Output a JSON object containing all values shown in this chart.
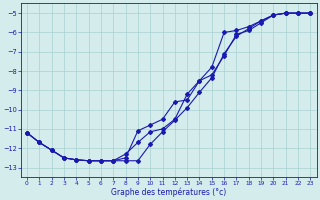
{
  "xlabel": "Graphe des températures (°c)",
  "bg_color": "#d4ecec",
  "grid_color": "#a8d0d0",
  "line_color": "#1a1ab0",
  "xlim_min": -0.5,
  "xlim_max": 23.5,
  "ylim_min": -13.5,
  "ylim_max": -4.5,
  "xticks": [
    0,
    1,
    2,
    3,
    4,
    5,
    6,
    7,
    8,
    9,
    10,
    11,
    12,
    13,
    14,
    15,
    16,
    17,
    18,
    19,
    20,
    21,
    22,
    23
  ],
  "yticks": [
    -5,
    -6,
    -7,
    -8,
    -9,
    -10,
    -11,
    -12,
    -13
  ],
  "line1_x": [
    0,
    1,
    2,
    3,
    4,
    5,
    6,
    7,
    8,
    9,
    10,
    11,
    12,
    13,
    14,
    15,
    16,
    17,
    18,
    19,
    20,
    21,
    22,
    23
  ],
  "line1_y": [
    -11.2,
    -11.7,
    -12.1,
    -12.5,
    -12.6,
    -12.65,
    -12.65,
    -12.65,
    -12.5,
    -11.1,
    -10.8,
    -10.5,
    -9.6,
    -9.5,
    -8.5,
    -8.2,
    -7.2,
    -6.1,
    -5.9,
    -5.5,
    -5.1,
    -5.0,
    -5.0,
    -5.0
  ],
  "line2_x": [
    0,
    1,
    2,
    3,
    4,
    5,
    6,
    7,
    8,
    9,
    10,
    11,
    12,
    13,
    14,
    15,
    16,
    17,
    18,
    19,
    20,
    21,
    22,
    23
  ],
  "line2_y": [
    -11.2,
    -11.7,
    -12.1,
    -12.5,
    -12.6,
    -12.65,
    -12.65,
    -12.65,
    -12.65,
    -12.65,
    -11.8,
    -11.15,
    -10.55,
    -9.9,
    -9.1,
    -8.35,
    -7.1,
    -6.2,
    -5.8,
    -5.4,
    -5.1,
    -5.0,
    -5.0,
    -5.0
  ],
  "line3_x": [
    0,
    1,
    2,
    3,
    4,
    5,
    6,
    7,
    8,
    9,
    10,
    11,
    12,
    13,
    14,
    15,
    16,
    17,
    18,
    19,
    20,
    21,
    22,
    23
  ],
  "line3_y": [
    -11.2,
    -11.7,
    -12.1,
    -12.5,
    -12.6,
    -12.65,
    -12.65,
    -12.65,
    -12.3,
    -11.7,
    -11.15,
    -11.0,
    -10.5,
    -9.2,
    -8.5,
    -7.8,
    -6.0,
    -5.9,
    -5.7,
    -5.4,
    -5.1,
    -5.0,
    -5.0,
    -5.0
  ]
}
